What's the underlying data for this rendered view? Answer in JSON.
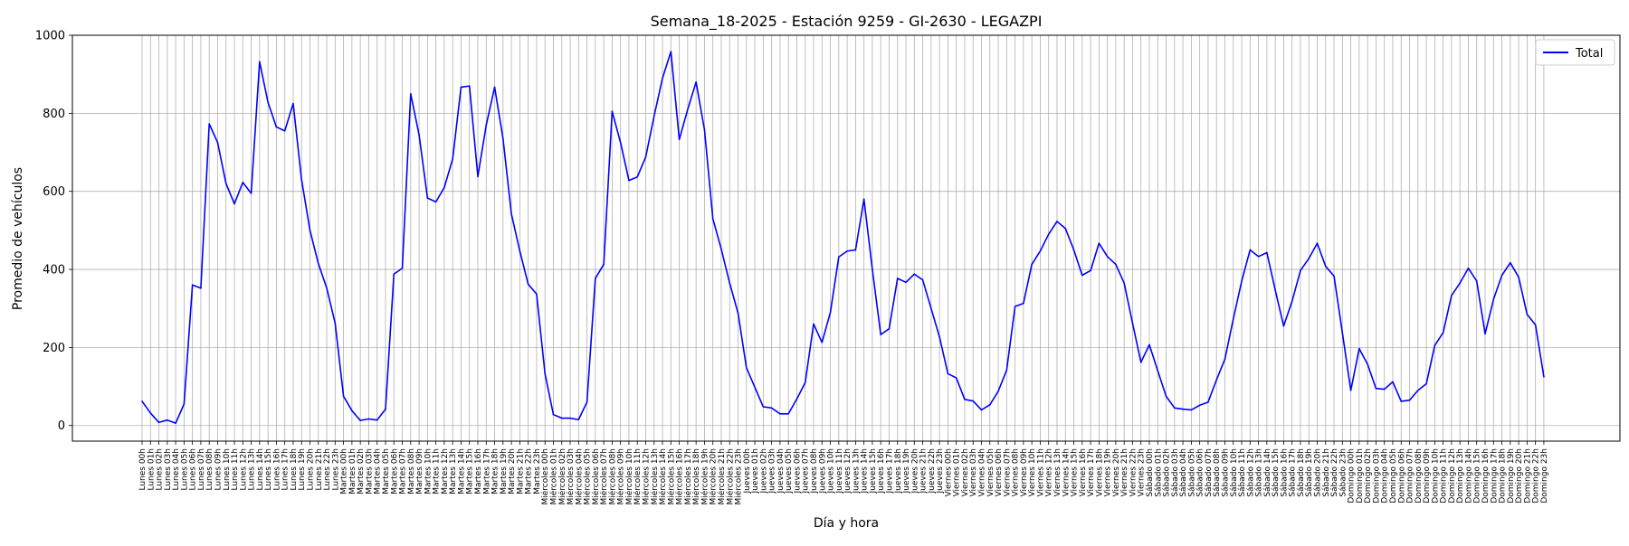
{
  "chart_data": {
    "type": "line",
    "title": "Semana_18-2025 - Estación 9259 - GI-2630  - LEGAZPI",
    "xlabel": "Día y hora",
    "ylabel": "Promedio de vehículos",
    "ylim": [
      -40,
      1000
    ],
    "yticks": [
      0,
      200,
      400,
      600,
      800,
      1000
    ],
    "grid": true,
    "legend_position": "top-right",
    "series_colors": [
      "#0000ff"
    ],
    "categories": [
      "Lunes 00h",
      "Lunes 01h",
      "Lunes 02h",
      "Lunes 03h",
      "Lunes 04h",
      "Lunes 05h",
      "Lunes 06h",
      "Lunes 07h",
      "Lunes 08h",
      "Lunes 09h",
      "Lunes 10h",
      "Lunes 11h",
      "Lunes 12h",
      "Lunes 13h",
      "Lunes 14h",
      "Lunes 15h",
      "Lunes 16h",
      "Lunes 17h",
      "Lunes 18h",
      "Lunes 19h",
      "Lunes 20h",
      "Lunes 21h",
      "Lunes 22h",
      "Lunes 23h",
      "Martes 00h",
      "Martes 01h",
      "Martes 02h",
      "Martes 03h",
      "Martes 04h",
      "Martes 05h",
      "Martes 06h",
      "Martes 07h",
      "Martes 08h",
      "Martes 09h",
      "Martes 10h",
      "Martes 11h",
      "Martes 12h",
      "Martes 13h",
      "Martes 14h",
      "Martes 15h",
      "Martes 16h",
      "Martes 17h",
      "Martes 18h",
      "Martes 19h",
      "Martes 20h",
      "Martes 21h",
      "Martes 22h",
      "Martes 23h",
      "Miércoles 00h",
      "Miércoles 01h",
      "Miércoles 02h",
      "Miércoles 03h",
      "Miércoles 04h",
      "Miércoles 05h",
      "Miércoles 06h",
      "Miércoles 07h",
      "Miércoles 08h",
      "Miércoles 09h",
      "Miércoles 10h",
      "Miércoles 11h",
      "Miércoles 12h",
      "Miércoles 13h",
      "Miércoles 14h",
      "Miércoles 15h",
      "Miércoles 16h",
      "Miércoles 17h",
      "Miércoles 18h",
      "Miércoles 19h",
      "Miércoles 20h",
      "Miércoles 21h",
      "Miércoles 22h",
      "Miércoles 23h",
      "Jueves 00h",
      "Jueves 01h",
      "Jueves 02h",
      "Jueves 03h",
      "Jueves 04h",
      "Jueves 05h",
      "Jueves 06h",
      "Jueves 07h",
      "Jueves 08h",
      "Jueves 09h",
      "Jueves 10h",
      "Jueves 11h",
      "Jueves 12h",
      "Jueves 13h",
      "Jueves 14h",
      "Jueves 15h",
      "Jueves 16h",
      "Jueves 17h",
      "Jueves 18h",
      "Jueves 19h",
      "Jueves 20h",
      "Jueves 21h",
      "Jueves 22h",
      "Jueves 23h",
      "Viernes 00h",
      "Viernes 01h",
      "Viernes 02h",
      "Viernes 03h",
      "Viernes 04h",
      "Viernes 05h",
      "Viernes 06h",
      "Viernes 07h",
      "Viernes 08h",
      "Viernes 09h",
      "Viernes 10h",
      "Viernes 11h",
      "Viernes 12h",
      "Viernes 13h",
      "Viernes 14h",
      "Viernes 15h",
      "Viernes 16h",
      "Viernes 17h",
      "Viernes 18h",
      "Viernes 19h",
      "Viernes 20h",
      "Viernes 21h",
      "Viernes 22h",
      "Viernes 23h",
      "Sábado 00h",
      "Sábado 01h",
      "Sábado 02h",
      "Sábado 03h",
      "Sábado 04h",
      "Sábado 05h",
      "Sábado 06h",
      "Sábado 07h",
      "Sábado 08h",
      "Sábado 09h",
      "Sábado 10h",
      "Sábado 11h",
      "Sábado 12h",
      "Sábado 13h",
      "Sábado 14h",
      "Sábado 15h",
      "Sábado 16h",
      "Sábado 17h",
      "Sábado 18h",
      "Sábado 19h",
      "Sábado 20h",
      "Sábado 21h",
      "Sábado 22h",
      "Sábado 23h",
      "Domingo 00h",
      "Domingo 01h",
      "Domingo 02h",
      "Domingo 03h",
      "Domingo 04h",
      "Domingo 05h",
      "Domingo 06h",
      "Domingo 07h",
      "Domingo 08h",
      "Domingo 09h",
      "Domingo 10h",
      "Domingo 11h",
      "Domingo 12h",
      "Domingo 13h",
      "Domingo 14h",
      "Domingo 15h",
      "Domingo 16h",
      "Domingo 17h",
      "Domingo 18h",
      "Domingo 19h",
      "Domingo 20h",
      "Domingo 21h",
      "Domingo 22h",
      "Domingo 23h"
    ],
    "series": [
      {
        "name": "Total",
        "values": [
          62,
          32,
          8,
          14,
          6,
          55,
          360,
          352,
          773,
          725,
          620,
          568,
          623,
          595,
          932,
          828,
          765,
          755,
          825,
          630,
          500,
          415,
          352,
          262,
          75,
          38,
          13,
          17,
          14,
          42,
          388,
          403,
          850,
          745,
          583,
          573,
          610,
          683,
          867,
          870,
          638,
          770,
          867,
          735,
          542,
          447,
          362,
          337,
          133,
          28,
          19,
          19,
          15,
          60,
          377,
          413,
          805,
          725,
          628,
          637,
          688,
          793,
          890,
          958,
          733,
          810,
          880,
          758,
          530,
          452,
          365,
          288,
          148,
          98,
          48,
          45,
          30,
          30,
          68,
          110,
          260,
          213,
          290,
          432,
          447,
          450,
          580,
          400,
          233,
          248,
          377,
          367,
          388,
          373,
          300,
          227,
          133,
          122,
          67,
          63,
          40,
          53,
          88,
          142,
          305,
          313,
          413,
          447,
          490,
          523,
          505,
          450,
          385,
          397,
          467,
          433,
          413,
          365,
          262,
          162,
          207,
          140,
          75,
          45,
          42,
          40,
          52,
          60,
          117,
          170,
          273,
          370,
          450,
          433,
          443,
          347,
          255,
          318,
          397,
          428,
          467,
          408,
          383,
          237,
          90,
          197,
          157,
          95,
          93,
          112,
          62,
          65,
          90,
          107,
          205,
          238,
          333,
          365,
          403,
          370,
          235,
          323,
          385,
          417,
          380,
          285,
          258,
          125
        ]
      }
    ]
  }
}
